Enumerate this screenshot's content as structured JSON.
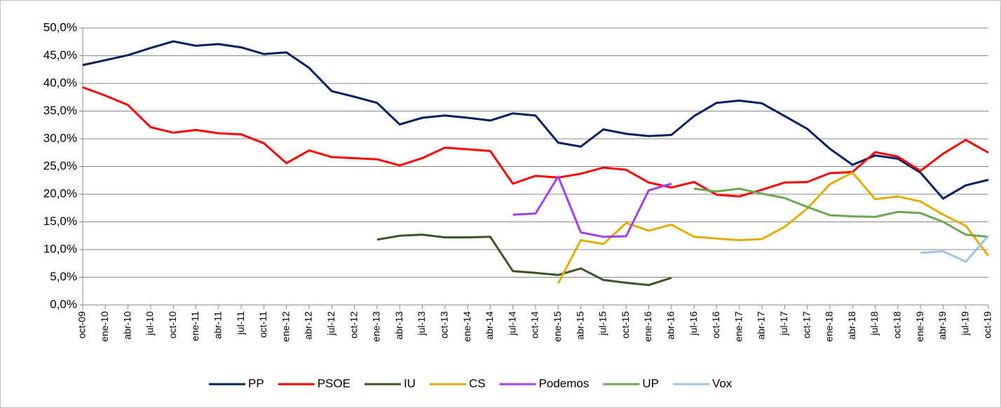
{
  "chart_data": {
    "type": "line",
    "categories": [
      "oct-09",
      "ene-10",
      "abr-10",
      "jul-10",
      "oct-10",
      "ene-11",
      "abr-11",
      "jul-11",
      "oct-11",
      "ene-12",
      "abr-12",
      "jul-12",
      "oct-12",
      "ene-13",
      "abr-13",
      "jul-13",
      "oct-13",
      "ene-14",
      "abr-14",
      "jul-14",
      "oct-14",
      "ene-15",
      "abr-15",
      "jul-15",
      "oct-15",
      "ene-16",
      "abr-16",
      "jul-16",
      "oct-16",
      "ene-17",
      "abr-17",
      "jul-17",
      "oct-17",
      "ene-18",
      "abr-18",
      "jul-18",
      "oct-18",
      "ene-19",
      "abr-19",
      "jul-19",
      "oct-19"
    ],
    "series": [
      {
        "name": "PP",
        "color": "#002060",
        "values": [
          43.3,
          44.2,
          45.1,
          46.4,
          47.6,
          46.8,
          47.1,
          46.5,
          45.3,
          45.6,
          42.8,
          38.6,
          37.6,
          36.5,
          32.6,
          33.8,
          34.2,
          33.8,
          33.3,
          34.6,
          34.2,
          29.3,
          28.6,
          31.7,
          30.9,
          30.5,
          30.7,
          34.1,
          36.5,
          36.9,
          36.4,
          34.1,
          31.8,
          28.2,
          25.3,
          27.0,
          26.4,
          23.9,
          19.2,
          21.6,
          22.6
        ]
      },
      {
        "name": "PSOE",
        "color": "#ff0000",
        "values": [
          39.3,
          37.8,
          36.1,
          32.1,
          31.1,
          31.6,
          31.0,
          30.8,
          29.2,
          25.6,
          27.9,
          26.7,
          26.5,
          26.3,
          25.2,
          26.5,
          28.4,
          28.1,
          27.8,
          21.9,
          23.3,
          23.0,
          23.7,
          24.8,
          24.4,
          22.1,
          21.2,
          22.2,
          19.9,
          19.6,
          20.8,
          22.1,
          22.2,
          23.8,
          24.0,
          27.6,
          26.8,
          24.2,
          27.3,
          29.8,
          27.5
        ]
      },
      {
        "name": "IU",
        "color": "#375623",
        "values": [
          null,
          null,
          null,
          null,
          null,
          null,
          null,
          null,
          null,
          null,
          null,
          null,
          null,
          11.8,
          12.5,
          12.7,
          12.2,
          12.2,
          12.3,
          6.1,
          5.8,
          5.4,
          6.6,
          4.5,
          4.0,
          3.6,
          4.9,
          null,
          null,
          null,
          null,
          null,
          null,
          null,
          null,
          null,
          null,
          null,
          null,
          null,
          null
        ]
      },
      {
        "name": "CS",
        "color": "#e3ad00",
        "values": [
          null,
          null,
          null,
          null,
          null,
          null,
          null,
          null,
          null,
          null,
          null,
          null,
          null,
          null,
          null,
          null,
          null,
          null,
          null,
          null,
          null,
          3.9,
          11.7,
          11.0,
          14.8,
          13.4,
          14.5,
          12.3,
          12.0,
          11.7,
          11.9,
          14.1,
          17.4,
          21.8,
          23.9,
          19.1,
          19.6,
          18.7,
          16.3,
          14.3,
          8.9
        ]
      },
      {
        "name": "Podemos",
        "color": "#a040f0",
        "values": [
          null,
          null,
          null,
          null,
          null,
          null,
          null,
          null,
          null,
          null,
          null,
          null,
          null,
          null,
          null,
          null,
          null,
          null,
          null,
          16.3,
          16.5,
          23.2,
          13.1,
          12.3,
          12.4,
          20.7,
          21.9,
          null,
          null,
          null,
          null,
          null,
          null,
          null,
          null,
          null,
          null,
          null,
          null,
          null,
          null
        ]
      },
      {
        "name": "UP",
        "color": "#6aa84f",
        "values": [
          null,
          null,
          null,
          null,
          null,
          null,
          null,
          null,
          null,
          null,
          null,
          null,
          null,
          null,
          null,
          null,
          null,
          null,
          null,
          null,
          null,
          null,
          null,
          null,
          null,
          null,
          null,
          21.0,
          20.5,
          21.0,
          20.1,
          19.3,
          17.7,
          16.2,
          16.0,
          15.9,
          16.8,
          16.6,
          15.0,
          12.7,
          12.3
        ]
      },
      {
        "name": "Vox",
        "color": "#9dc3e6",
        "values": [
          null,
          null,
          null,
          null,
          null,
          null,
          null,
          null,
          null,
          null,
          null,
          null,
          null,
          null,
          null,
          null,
          null,
          null,
          null,
          null,
          null,
          null,
          null,
          null,
          null,
          null,
          null,
          null,
          null,
          null,
          null,
          null,
          null,
          null,
          null,
          null,
          null,
          9.4,
          9.7,
          7.8,
          12.5
        ]
      }
    ],
    "ylim": [
      0,
      50
    ],
    "yticks": [
      {
        "value": 0,
        "label": "0,0%"
      },
      {
        "value": 5,
        "label": "5,0%"
      },
      {
        "value": 10,
        "label": "10,0%"
      },
      {
        "value": 15,
        "label": "15,0%"
      },
      {
        "value": 20,
        "label": "20,0%"
      },
      {
        "value": 25,
        "label": "25,0%"
      },
      {
        "value": 30,
        "label": "30,0%"
      },
      {
        "value": 35,
        "label": "35,0%"
      },
      {
        "value": 40,
        "label": "40,0%"
      },
      {
        "value": 45,
        "label": "45,0%"
      },
      {
        "value": 50,
        "label": "50,0%"
      }
    ],
    "grid": true,
    "legend": "bottom"
  }
}
